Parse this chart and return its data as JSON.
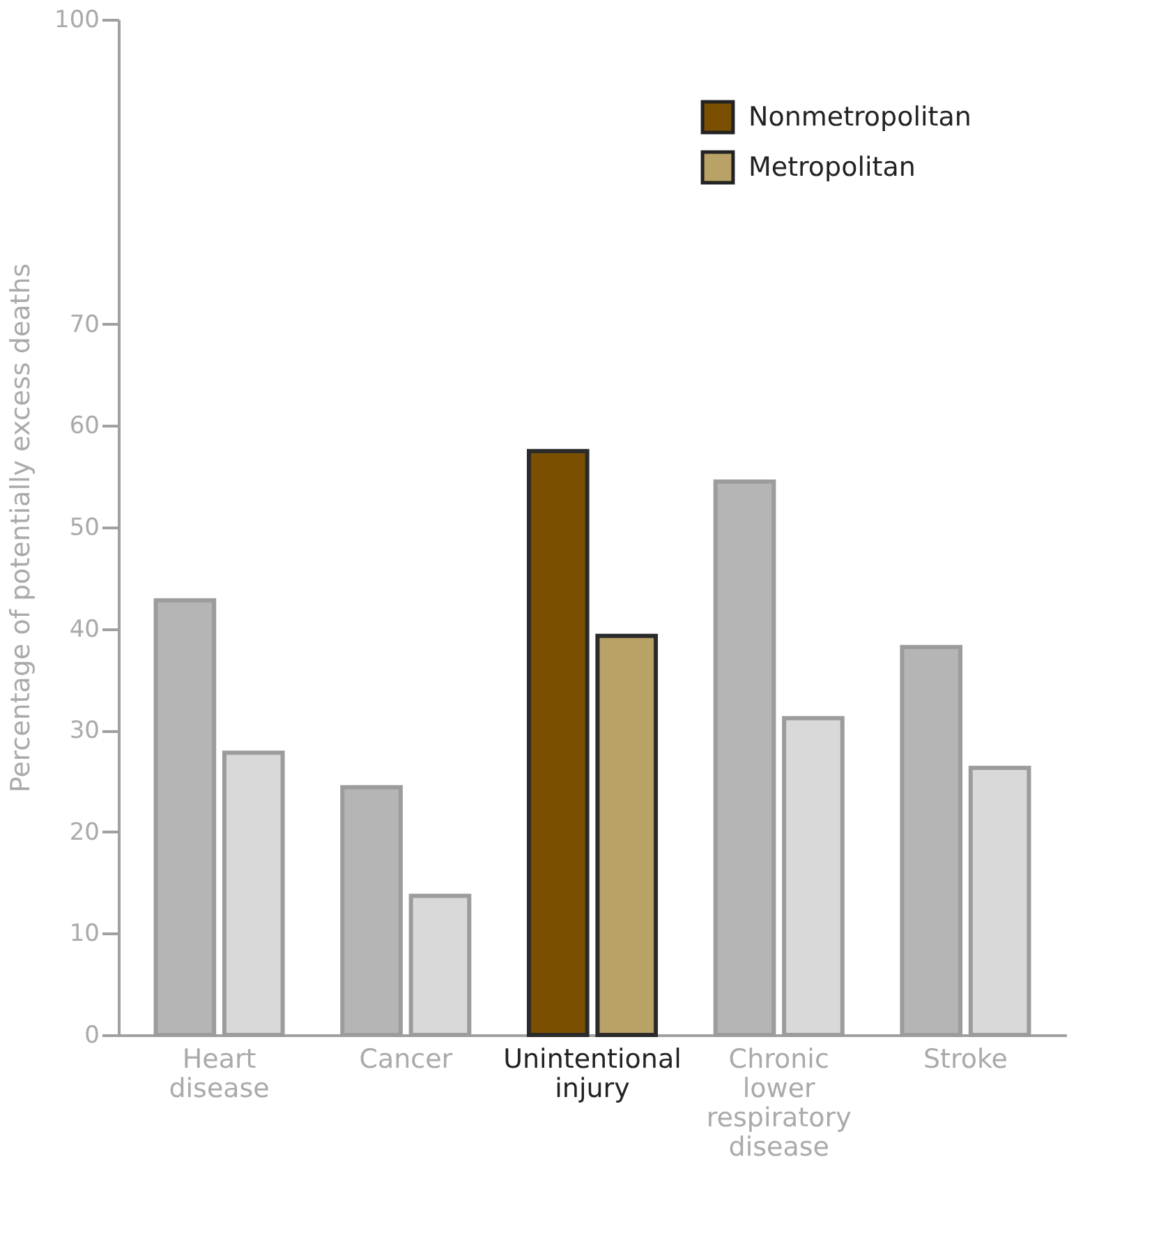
{
  "chart_data": {
    "type": "bar",
    "ylabel": "Percentage of potentially excess deaths",
    "categories": [
      "Heart disease",
      "Cancer",
      "Unintentional injury",
      "Chronic lower respiratory disease",
      "Stroke"
    ],
    "series": [
      {
        "name": "Nonmetropolitan",
        "color": "#7a5000",
        "colors": [
          "#b5b5b5",
          "#b5b5b5",
          "#7a5000",
          "#b5b5b5",
          "#b5b5b5"
        ],
        "values": [
          42.8,
          24.4,
          57.5,
          54.5,
          38.2
        ]
      },
      {
        "name": "Metropolitan",
        "color": "#b9a266",
        "colors": [
          "#d9d9d9",
          "#d9d9d9",
          "#b9a266",
          "#d9d9d9",
          "#d9d9d9"
        ],
        "values": [
          27.8,
          13.7,
          39.3,
          31.2,
          26.3
        ]
      }
    ],
    "ylim": [
      0,
      100
    ],
    "yticks": [
      0,
      10,
      20,
      30,
      40,
      50,
      60,
      70,
      100
    ],
    "grid": false,
    "legend": "top right"
  }
}
